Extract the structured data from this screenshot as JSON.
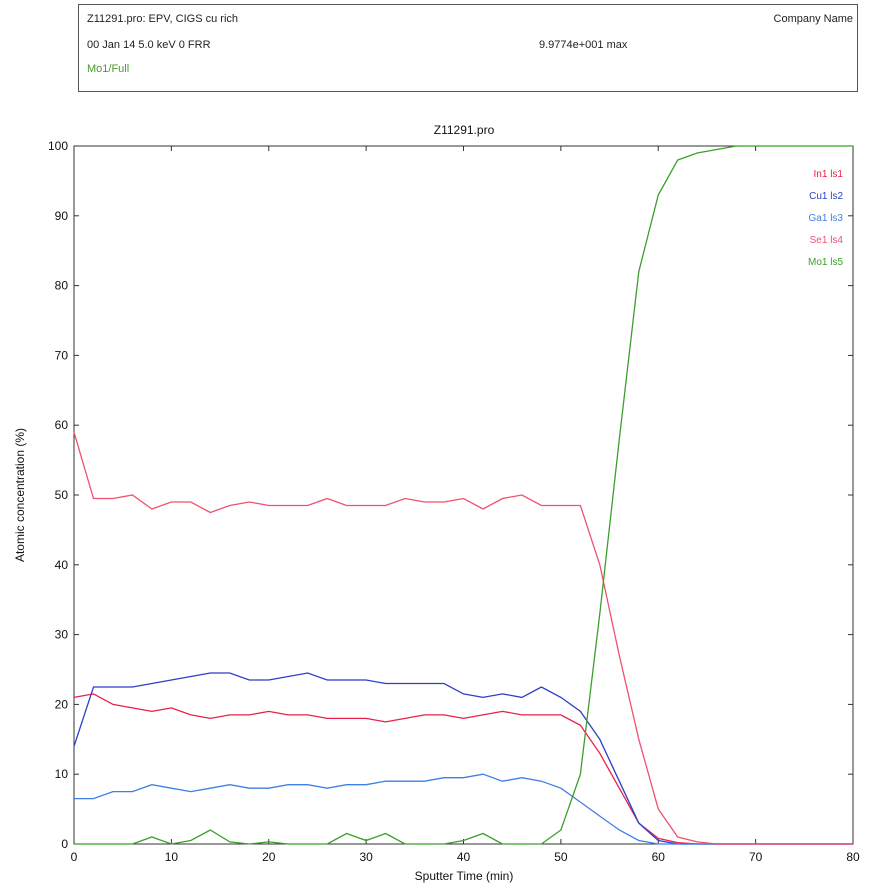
{
  "header": {
    "line1": "Z11291.pro: EPV, CIGS cu rich",
    "line2": "00 Jan 14  5.0 keV  0  FRR",
    "line3": "Mo1/Full",
    "company": "Company Name",
    "max_value": "9.9774e+001 max"
  },
  "colors": {
    "In1 ls1": "#e8204a",
    "Cu1 ls2": "#2a3fc8",
    "Ga1 ls3": "#3f7fe8",
    "Se1 ls4": "#f05070",
    "Mo1 ls5": "#3aa02a"
  },
  "chart_data": {
    "type": "line",
    "title": "Z11291.pro",
    "xlabel": "Sputter Time (min)",
    "ylabel": "Atomic  concentration (%)",
    "xlim": [
      0,
      80
    ],
    "ylim": [
      0,
      100
    ],
    "xticks": [
      0,
      10,
      20,
      30,
      40,
      50,
      60,
      70,
      80
    ],
    "yticks": [
      0,
      10,
      20,
      30,
      40,
      50,
      60,
      70,
      80,
      90,
      100
    ],
    "legend_position": "top-right",
    "series": [
      {
        "name": "In1 ls1",
        "x": [
          0,
          2,
          4,
          6,
          8,
          10,
          12,
          14,
          16,
          18,
          20,
          22,
          24,
          26,
          28,
          30,
          32,
          34,
          36,
          38,
          40,
          42,
          44,
          46,
          48,
          50,
          52,
          54,
          56,
          58,
          60,
          62,
          64,
          66,
          70,
          75,
          80
        ],
        "y": [
          21,
          21.5,
          20,
          19.5,
          19,
          19.5,
          18.5,
          18,
          18.5,
          18.5,
          19,
          18.5,
          18.5,
          18,
          18,
          18,
          17.5,
          18,
          18.5,
          18.5,
          18,
          18.5,
          19,
          18.5,
          18.5,
          18.5,
          17,
          13,
          8,
          3,
          0.8,
          0.2,
          0,
          0,
          0,
          0,
          0
        ]
      },
      {
        "name": "Cu1 ls2",
        "x": [
          0,
          2,
          4,
          6,
          8,
          10,
          12,
          14,
          16,
          18,
          20,
          22,
          24,
          26,
          28,
          30,
          32,
          34,
          36,
          38,
          40,
          42,
          44,
          46,
          48,
          50,
          52,
          54,
          56,
          58,
          60,
          62,
          64,
          66,
          70,
          75,
          80
        ],
        "y": [
          14,
          22.5,
          22.5,
          22.5,
          23,
          23.5,
          24,
          24.5,
          24.5,
          23.5,
          23.5,
          24,
          24.5,
          23.5,
          23.5,
          23.5,
          23,
          23,
          23,
          23,
          21.5,
          21,
          21.5,
          21,
          22.5,
          21,
          19,
          15,
          9,
          3,
          0.5,
          0,
          0,
          0,
          0,
          0,
          0
        ]
      },
      {
        "name": "Ga1 ls3",
        "x": [
          0,
          2,
          4,
          6,
          8,
          10,
          12,
          14,
          16,
          18,
          20,
          22,
          24,
          26,
          28,
          30,
          32,
          34,
          36,
          38,
          40,
          42,
          44,
          46,
          48,
          50,
          52,
          54,
          56,
          58,
          60,
          62,
          64,
          66,
          70,
          75,
          80
        ],
        "y": [
          6.5,
          6.5,
          7.5,
          7.5,
          8.5,
          8,
          7.5,
          8,
          8.5,
          8,
          8,
          8.5,
          8.5,
          8,
          8.5,
          8.5,
          9,
          9,
          9,
          9.5,
          9.5,
          10,
          9,
          9.5,
          9,
          8,
          6,
          4,
          2,
          0.5,
          0,
          0,
          0,
          0,
          0,
          0,
          0
        ]
      },
      {
        "name": "Se1 ls4",
        "x": [
          0,
          2,
          4,
          6,
          8,
          10,
          12,
          14,
          16,
          18,
          20,
          22,
          24,
          26,
          28,
          30,
          32,
          34,
          36,
          38,
          40,
          42,
          44,
          46,
          48,
          50,
          52,
          54,
          56,
          58,
          60,
          62,
          64,
          66,
          70,
          75,
          80
        ],
        "y": [
          59,
          49.5,
          49.5,
          50,
          48,
          49,
          49,
          47.5,
          48.5,
          49,
          48.5,
          48.5,
          48.5,
          49.5,
          48.5,
          48.5,
          48.5,
          49.5,
          49,
          49,
          49.5,
          48,
          49.5,
          50,
          48.5,
          48.5,
          48.5,
          40,
          27,
          15,
          5,
          1,
          0.3,
          0,
          0,
          0,
          0
        ]
      },
      {
        "name": "Mo1 ls5",
        "x": [
          0,
          2,
          4,
          6,
          8,
          9,
          10,
          12,
          14,
          16,
          18,
          20,
          22,
          24,
          26,
          28,
          30,
          32,
          34,
          36,
          38,
          40,
          42,
          44,
          46,
          48,
          50,
          52,
          54,
          56,
          58,
          60,
          62,
          64,
          66,
          68,
          70,
          75,
          80
        ],
        "y": [
          0,
          0,
          0,
          0,
          1,
          0.5,
          0,
          0.5,
          2,
          0.3,
          0,
          0.3,
          0,
          0,
          0,
          1.5,
          0.5,
          1.5,
          0,
          0,
          0,
          0.5,
          1.5,
          0,
          0,
          0,
          2,
          10,
          33,
          58,
          82,
          93,
          98,
          99,
          99.5,
          100,
          100,
          100,
          100
        ]
      }
    ]
  }
}
